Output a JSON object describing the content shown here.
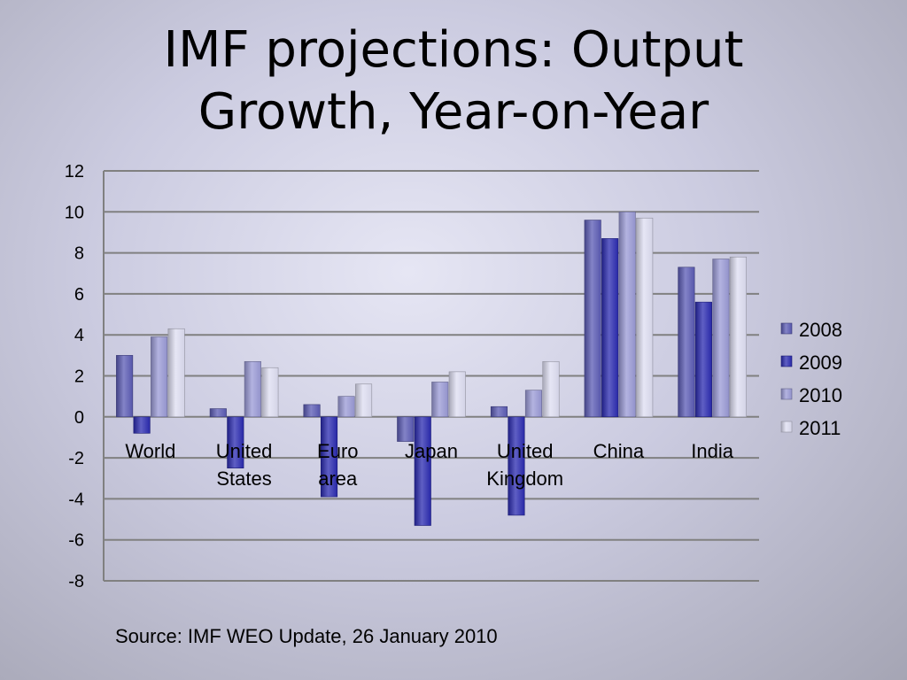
{
  "title": {
    "line1": "IMF projections: Output",
    "line2": "Growth, Year-on-Year"
  },
  "source": "Source: IMF WEO Update, 26 January 2010",
  "colors": {
    "2008": "#5a5ab4",
    "2009": "#2a2ab0",
    "2010": "#9a9ad6",
    "2011": "#dedef2",
    "gridline": "#808080",
    "axis": "#808080"
  },
  "chart_data": {
    "type": "bar",
    "title": "",
    "xlabel": "",
    "ylabel": "",
    "ylim": [
      -8,
      12
    ],
    "yticks": [
      12,
      10,
      8,
      6,
      4,
      2,
      0,
      -2,
      -4,
      -6,
      -8
    ],
    "grid": true,
    "legend_position": "right",
    "categories": [
      [
        "World"
      ],
      [
        "United",
        "States"
      ],
      [
        "Euro",
        "area"
      ],
      [
        "Japan"
      ],
      [
        "United",
        "Kingdom"
      ],
      [
        "China"
      ],
      [
        "India"
      ]
    ],
    "series": [
      {
        "name": "2008",
        "values": [
          3.0,
          0.4,
          0.6,
          -1.2,
          0.5,
          9.6,
          7.3
        ]
      },
      {
        "name": "2009",
        "values": [
          -0.8,
          -2.5,
          -3.9,
          -5.3,
          -4.8,
          8.7,
          5.6
        ]
      },
      {
        "name": "2010",
        "values": [
          3.9,
          2.7,
          1.0,
          1.7,
          1.3,
          10.0,
          7.7
        ]
      },
      {
        "name": "2011",
        "values": [
          4.3,
          2.4,
          1.6,
          2.2,
          2.7,
          9.7,
          7.8
        ]
      }
    ]
  }
}
